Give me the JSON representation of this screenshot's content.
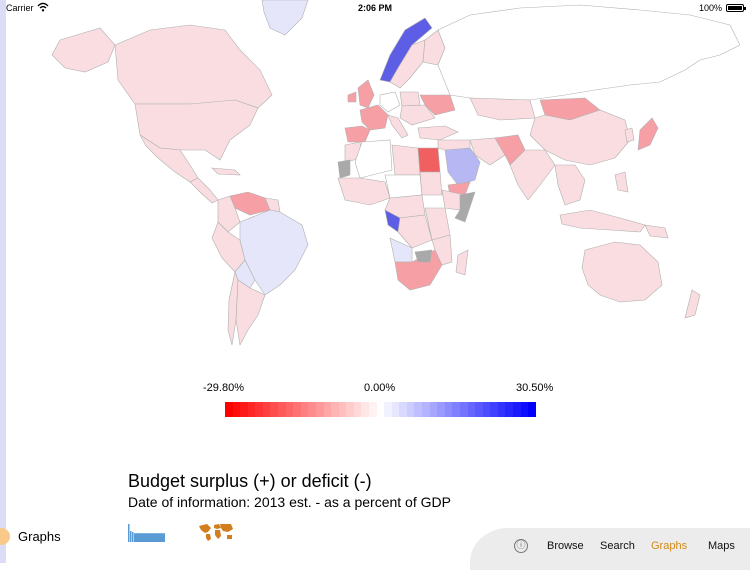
{
  "status_bar": {
    "carrier": "Carrier",
    "time": "2:06 PM",
    "battery": "100%"
  },
  "map": {
    "colors": {
      "neg_strong": "#f06060",
      "neg_mid": "#f6a0a6",
      "neg_light": "#f9dde0",
      "neutral": "#ffffff",
      "pos_light": "#e6e6fb",
      "pos_mid": "#b7b7f3",
      "pos_strong": "#5d5de6",
      "no_data": "#a9a9a9",
      "border": "#b0b0b0"
    }
  },
  "legend": {
    "min_label": "-29.80%",
    "mid_label": "0.00%",
    "max_label": "30.50%",
    "min_color": "#ff0000",
    "mid_color": "#ffffff",
    "max_color": "#0000ff",
    "steps": 41
  },
  "info": {
    "title": "Budget surplus (+) or deficit (-)",
    "subtitle": "Date of information: 2013 est. - as a percent of GDP"
  },
  "sidebar": {
    "current_label": "Graphs",
    "indicator_color": "#f9c98a"
  },
  "thumbnails": {
    "bar_color": "#5b9bd5",
    "map_color": "#d27d1e"
  },
  "tabbar": {
    "info_icon": "ⓘ",
    "tabs": [
      {
        "label": "Browse"
      },
      {
        "label": "Search"
      },
      {
        "label": "Graphs"
      },
      {
        "label": "Maps"
      }
    ],
    "active_color": "#d28a18"
  }
}
